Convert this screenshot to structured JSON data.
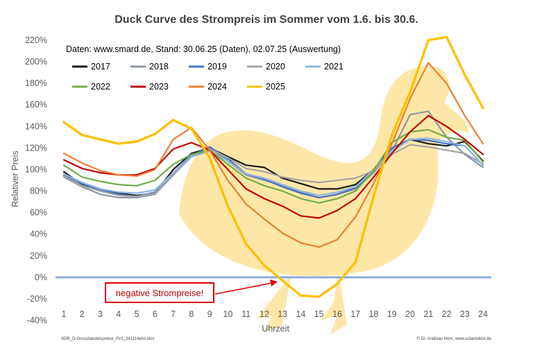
{
  "chart_data": {
    "type": "line",
    "title": "Duck Curve des Strompreis im Sommer vom 1.6. bis 30.6.",
    "subtitle": "Daten: www.smard.de, Stand: 30.06.25 (Daten), 02.07.25 (Auswertung)",
    "xlabel": "Uhrzeit",
    "ylabel": "Relativer Preis",
    "x": [
      1,
      2,
      3,
      4,
      5,
      6,
      7,
      8,
      9,
      10,
      11,
      12,
      13,
      14,
      15,
      16,
      17,
      18,
      19,
      20,
      21,
      22,
      23,
      24
    ],
    "ylim": [
      -40,
      220
    ],
    "yticks": [
      -40,
      -20,
      0,
      20,
      40,
      60,
      80,
      100,
      120,
      140,
      160,
      180,
      200,
      220
    ],
    "ytick_labels": [
      "-40%",
      "-20%",
      "0%",
      "20%",
      "40%",
      "60%",
      "80%",
      "100%",
      "120%",
      "140%",
      "160%",
      "180%",
      "200%",
      "220%"
    ],
    "series": [
      {
        "name": "2017",
        "color": "#1a1a1a",
        "width": 2.2,
        "values": [
          98,
          86,
          82,
          78,
          76,
          78,
          100,
          115,
          120,
          112,
          104,
          102,
          92,
          87,
          82,
          82,
          86,
          100,
          120,
          128,
          124,
          122,
          126,
          108
        ]
      },
      {
        "name": "2018",
        "color": "#8c96a6",
        "width": 2.2,
        "values": [
          93,
          84,
          77,
          74,
          74,
          77,
          95,
          112,
          120,
          108,
          95,
          90,
          85,
          79,
          74,
          77,
          82,
          97,
          117,
          151,
          154,
          130,
          114,
          102
        ]
      },
      {
        "name": "2019",
        "color": "#4472c4",
        "width": 2.2,
        "values": [
          95,
          87,
          81,
          77,
          75,
          79,
          97,
          113,
          121,
          110,
          96,
          91,
          84,
          78,
          74,
          77,
          83,
          99,
          120,
          128,
          127,
          124,
          122,
          104
        ]
      },
      {
        "name": "2020",
        "color": "#a5a5a5",
        "width": 2.2,
        "values": [
          94,
          85,
          80,
          76,
          75,
          78,
          96,
          112,
          119,
          111,
          101,
          98,
          93,
          90,
          88,
          90,
          92,
          99,
          114,
          123,
          121,
          118,
          115,
          105
        ]
      },
      {
        "name": "2021",
        "color": "#8db4e2",
        "width": 2.2,
        "values": [
          96,
          88,
          82,
          79,
          78,
          81,
          97,
          112,
          117,
          108,
          96,
          92,
          86,
          80,
          76,
          79,
          84,
          100,
          117,
          128,
          129,
          126,
          122,
          104
        ]
      },
      {
        "name": "2022",
        "color": "#70ad47",
        "width": 2.2,
        "values": [
          104,
          93,
          89,
          86,
          85,
          90,
          105,
          114,
          118,
          105,
          92,
          85,
          80,
          73,
          69,
          73,
          80,
          99,
          125,
          135,
          137,
          130,
          127,
          107
        ]
      },
      {
        "name": "2023",
        "color": "#c00000",
        "width": 2.2,
        "values": [
          109,
          101,
          97,
          95,
          95,
          101,
          119,
          125,
          118,
          100,
          82,
          73,
          66,
          57,
          55,
          62,
          73,
          93,
          115,
          135,
          150,
          140,
          128,
          114
        ]
      },
      {
        "name": "2024",
        "color": "#ed7d31",
        "width": 2.2,
        "values": [
          115,
          106,
          99,
          95,
          94,
          100,
          128,
          139,
          118,
          90,
          68,
          54,
          41,
          32,
          28,
          35,
          56,
          87,
          124,
          166,
          199,
          180,
          150,
          124
        ]
      },
      {
        "name": "2025",
        "color": "#ffc000",
        "width": 3.4,
        "values": [
          144,
          132,
          128,
          124,
          126,
          133,
          146,
          138,
          111,
          66,
          31,
          11,
          -3,
          -17,
          -18,
          -6,
          14,
          75,
          132,
          172,
          220,
          223,
          188,
          157
        ]
      }
    ],
    "legend_placement": "top-left",
    "annotation": "negative Strompreise!",
    "zero_line_color": "#8eaadb",
    "background_figure": "duck-silhouette",
    "footer_left": "SDR_D-Grosshandelspreise_0V1_241114aho.xlsx",
    "footer_right": "© Dr. Andreas  Horn, www.solardoktor.de"
  }
}
